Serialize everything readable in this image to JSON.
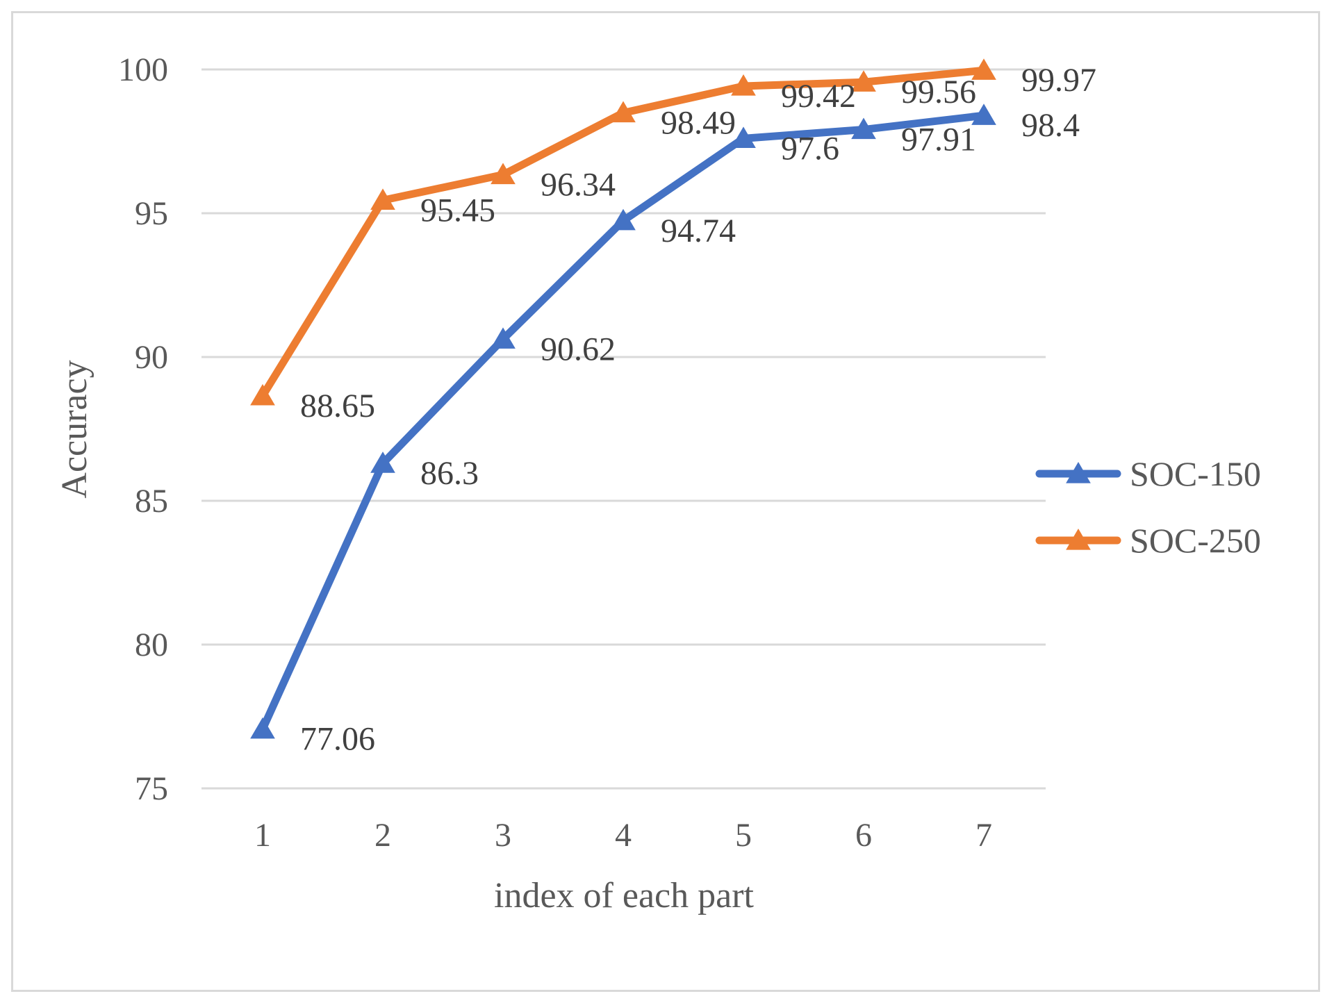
{
  "chart_data": {
    "type": "line",
    "title": "",
    "xlabel": "index of each part",
    "ylabel": "Accuracy",
    "categories": [
      "1",
      "2",
      "3",
      "4",
      "5",
      "6",
      "7"
    ],
    "ylim": [
      75,
      100
    ],
    "yticks": [
      75,
      80,
      85,
      90,
      95,
      100
    ],
    "grid": true,
    "legend_position": "right",
    "marker": "triangle",
    "series": [
      {
        "name": "SOC-150",
        "color": "#4472c4",
        "values": [
          77.06,
          86.3,
          90.62,
          94.74,
          97.6,
          97.91,
          98.4
        ],
        "labels": [
          "77.06",
          "86.3",
          "90.62",
          "94.74",
          "97.6",
          "97.91",
          "98.4"
        ]
      },
      {
        "name": "SOC-250",
        "color": "#ed7d31",
        "values": [
          88.65,
          95.45,
          96.34,
          98.49,
          99.42,
          99.56,
          99.97
        ],
        "labels": [
          "88.65",
          "95.45",
          "96.34",
          "98.49",
          "99.42",
          "99.56",
          "99.97"
        ]
      }
    ]
  }
}
